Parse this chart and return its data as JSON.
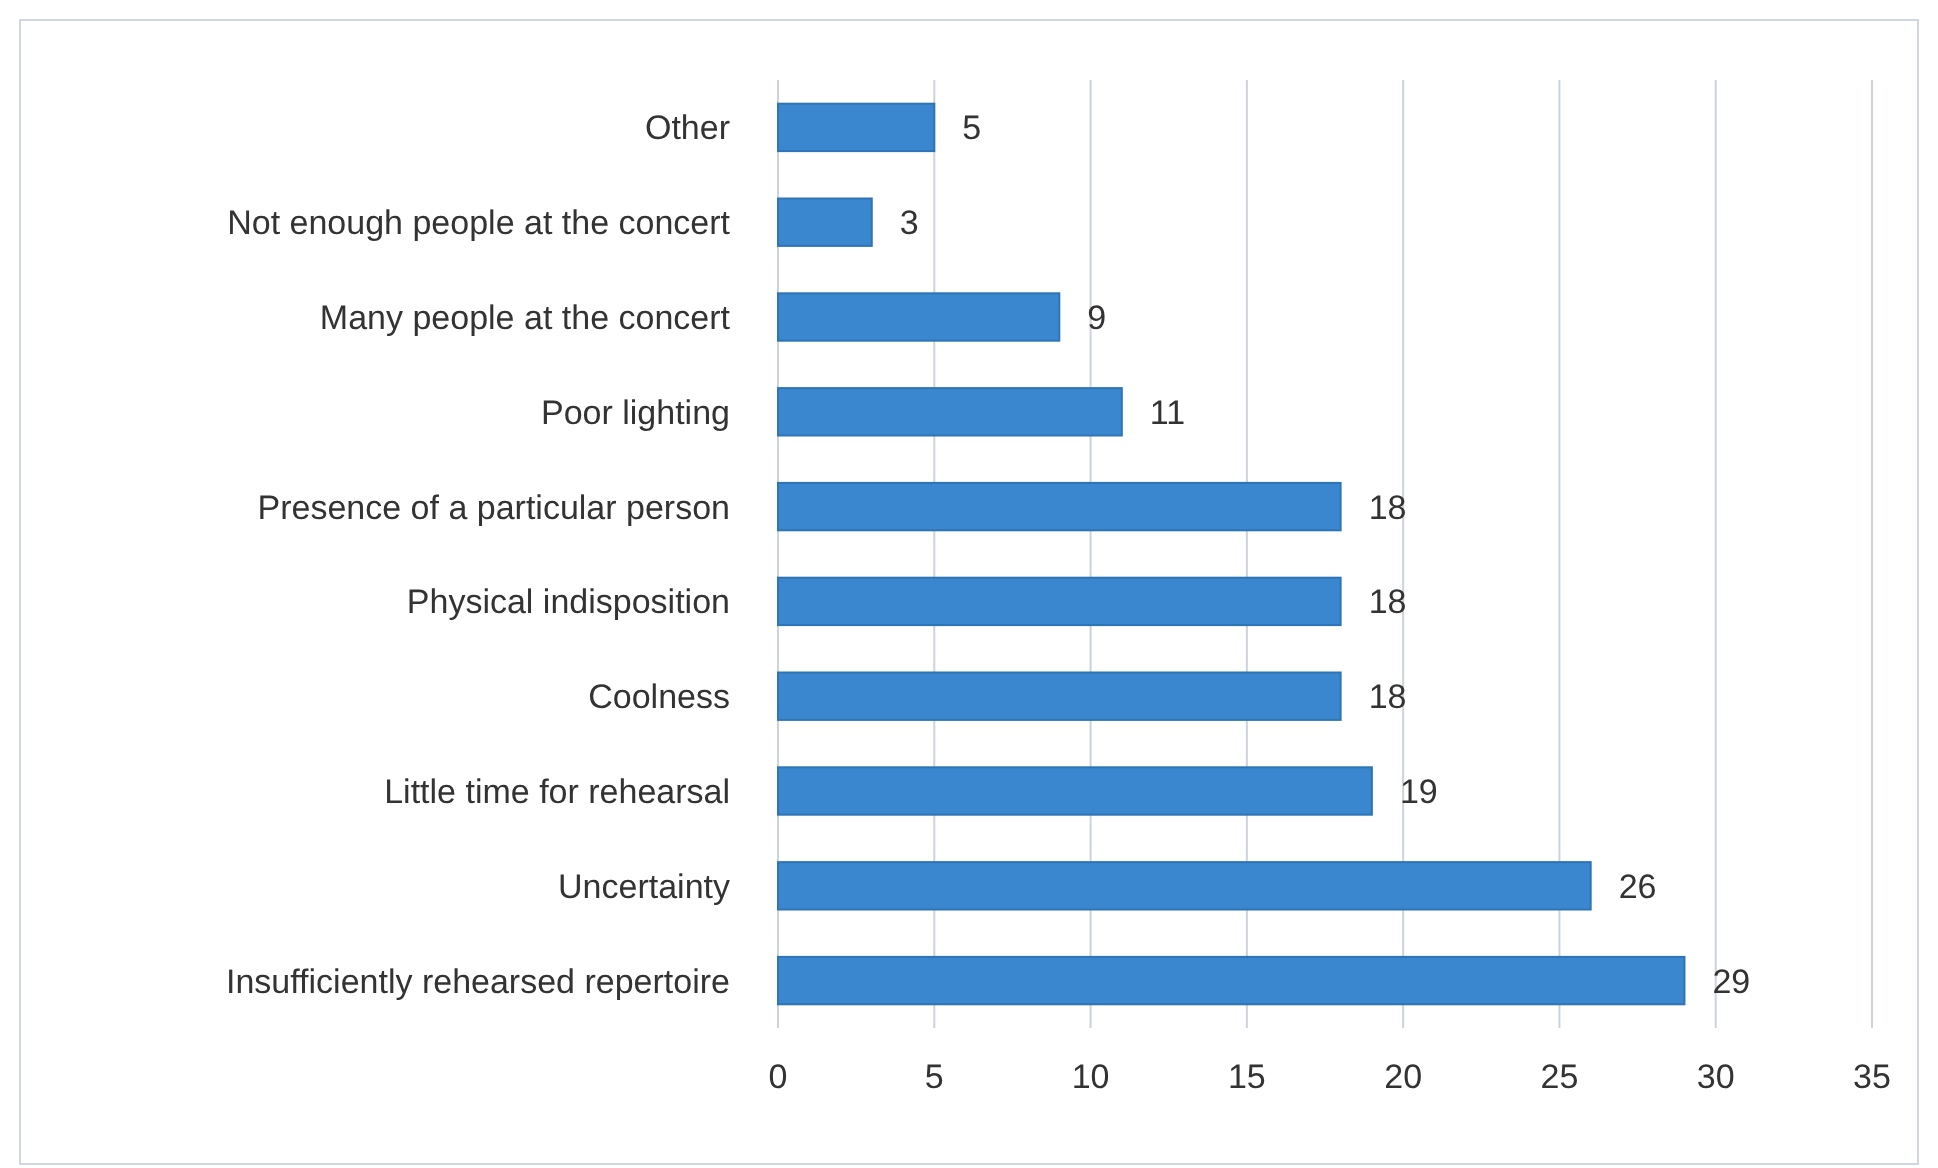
{
  "chart_data": {
    "type": "bar",
    "orientation": "horizontal",
    "categories": [
      "Other",
      "Not enough people at the concert",
      "Many people at the concert",
      "Poor lighting",
      "Presence of a particular person",
      "Physical indisposition",
      "Coolness",
      "Little time for rehearsal",
      "Uncertainty",
      "Insufficiently rehearsed repertoire"
    ],
    "values": [
      5,
      3,
      9,
      11,
      18,
      18,
      18,
      19,
      26,
      29
    ],
    "color": "#3a87cf",
    "xlim": [
      0,
      35
    ],
    "xticks": [
      0,
      5,
      10,
      15,
      20,
      25,
      30,
      35
    ],
    "grid": "x",
    "data_labels": true
  }
}
